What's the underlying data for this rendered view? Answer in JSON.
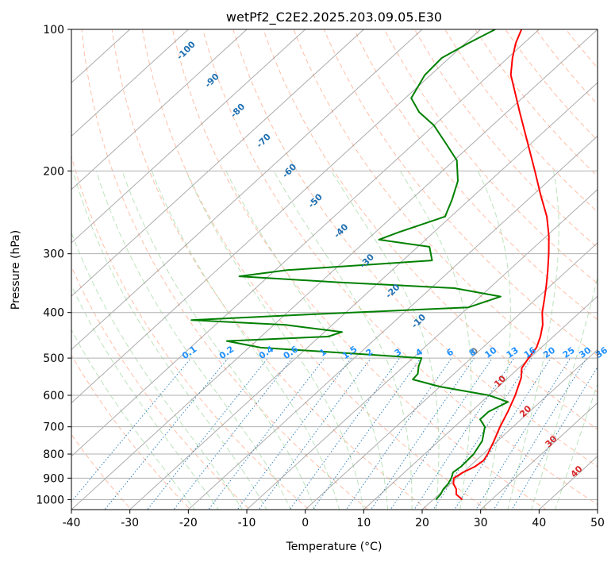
{
  "chart_data": {
    "type": "line",
    "title": "wetPf2_C2E2.2025.203.09.05.E30",
    "xlabel": "Temperature (°C)",
    "ylabel": "Pressure (hPa)",
    "xlim": [
      -40,
      50
    ],
    "ylim": [
      1050,
      100
    ],
    "y_scale": "log",
    "grid": true,
    "x_ticks": [
      -40,
      -30,
      -20,
      -10,
      0,
      10,
      20,
      30,
      40,
      50
    ],
    "y_ticks": [
      1000,
      900,
      800,
      700,
      600,
      500,
      400,
      300,
      200,
      100
    ],
    "dry_adiabat_labels": [
      "-100",
      "-90",
      "-80",
      "-70",
      "-60",
      "-50",
      "-40",
      "-30",
      "-20",
      "-10",
      "0",
      "10",
      "20",
      "30",
      "40"
    ],
    "mixing_ratio_labels": [
      "0.1",
      "0.2",
      "0.4",
      "0.6",
      "1",
      "1.5",
      "2",
      "3",
      "4",
      "6",
      "8",
      "10",
      "13",
      "16",
      "20",
      "25",
      "30",
      "36"
    ],
    "colors": {
      "temperature": "#ff0000",
      "dewpoint": "#008000",
      "dry_adiabat": "#ff7f50",
      "moist_adiabat": "#90d090",
      "mixing_ratio": "#1f77b4",
      "isotherm": "#808080",
      "cold_label": "#1f6fb0",
      "warm_label": "#d62728",
      "mixing_label": "#1e90ff",
      "zero_label": "#808080"
    },
    "series": [
      {
        "name": "",
        "role": "temperature",
        "points": [
          {
            "p": 1000,
            "t": 25.0
          },
          {
            "p": 975,
            "t": 23.0
          },
          {
            "p": 950,
            "t": 22.0
          },
          {
            "p": 925,
            "t": 20.5
          },
          {
            "p": 900,
            "t": 19.5
          },
          {
            "p": 875,
            "t": 20.0
          },
          {
            "p": 850,
            "t": 21.0
          },
          {
            "p": 825,
            "t": 21.3
          },
          {
            "p": 800,
            "t": 20.8
          },
          {
            "p": 750,
            "t": 19.4
          },
          {
            "p": 700,
            "t": 17.8
          },
          {
            "p": 650,
            "t": 16.3
          },
          {
            "p": 600,
            "t": 14.5
          },
          {
            "p": 550,
            "t": 12.2
          },
          {
            "p": 525,
            "t": 10.5
          },
          {
            "p": 500,
            "t": 9.8
          },
          {
            "p": 475,
            "t": 9.2
          },
          {
            "p": 450,
            "t": 7.8
          },
          {
            "p": 425,
            "t": 6.0
          },
          {
            "p": 400,
            "t": 3.6
          },
          {
            "p": 375,
            "t": 1.5
          },
          {
            "p": 350,
            "t": -0.8
          },
          {
            "p": 325,
            "t": -3.4
          },
          {
            "p": 300,
            "t": -6.3
          },
          {
            "p": 275,
            "t": -9.6
          },
          {
            "p": 250,
            "t": -13.6
          },
          {
            "p": 225,
            "t": -18.7
          },
          {
            "p": 200,
            "t": -24.2
          },
          {
            "p": 175,
            "t": -30.5
          },
          {
            "p": 150,
            "t": -37.8
          },
          {
            "p": 135,
            "t": -42.7
          },
          {
            "p": 125,
            "t": -46.3
          },
          {
            "p": 115,
            "t": -49.2
          },
          {
            "p": 107,
            "t": -51.4
          },
          {
            "p": 100,
            "t": -53.0
          }
        ]
      },
      {
        "name": "",
        "role": "dewpoint",
        "points": [
          {
            "p": 1000,
            "t": 20.5
          },
          {
            "p": 975,
            "t": 20.3
          },
          {
            "p": 950,
            "t": 19.8
          },
          {
            "p": 925,
            "t": 19.6
          },
          {
            "p": 900,
            "t": 19.1
          },
          {
            "p": 875,
            "t": 18.3
          },
          {
            "p": 850,
            "t": 18.6
          },
          {
            "p": 800,
            "t": 18.4
          },
          {
            "p": 750,
            "t": 17.4
          },
          {
            "p": 700,
            "t": 15.2
          },
          {
            "p": 675,
            "t": 13.0
          },
          {
            "p": 650,
            "t": 13.0
          },
          {
            "p": 620,
            "t": 14.5
          },
          {
            "p": 600,
            "t": 10.0
          },
          {
            "p": 575,
            "t": 0.0
          },
          {
            "p": 555,
            "t": -6.0
          },
          {
            "p": 540,
            "t": -6.2
          },
          {
            "p": 520,
            "t": -7.5
          },
          {
            "p": 500,
            "t": -8.5
          },
          {
            "p": 490,
            "t": -20.0
          },
          {
            "p": 475,
            "t": -38.0
          },
          {
            "p": 460,
            "t": -45.0
          },
          {
            "p": 450,
            "t": -28.5
          },
          {
            "p": 440,
            "t": -27.0
          },
          {
            "p": 425,
            "t": -38.0
          },
          {
            "p": 415,
            "t": -55.0
          },
          {
            "p": 405,
            "t": -38.0
          },
          {
            "p": 390,
            "t": -10.0
          },
          {
            "p": 370,
            "t": -6.5
          },
          {
            "p": 355,
            "t": -16.0
          },
          {
            "p": 345,
            "t": -37.0
          },
          {
            "p": 335,
            "t": -55.0
          },
          {
            "p": 325,
            "t": -48.0
          },
          {
            "p": 310,
            "t": -25.0
          },
          {
            "p": 290,
            "t": -28.0
          },
          {
            "p": 280,
            "t": -38.0
          },
          {
            "p": 270,
            "t": -36.0
          },
          {
            "p": 250,
            "t": -31.0
          },
          {
            "p": 230,
            "t": -33.0
          },
          {
            "p": 210,
            "t": -35.5
          },
          {
            "p": 190,
            "t": -39.5
          },
          {
            "p": 175,
            "t": -44.5
          },
          {
            "p": 160,
            "t": -50.0
          },
          {
            "p": 150,
            "t": -55.0
          },
          {
            "p": 140,
            "t": -59.0
          },
          {
            "p": 125,
            "t": -61.0
          },
          {
            "p": 115,
            "t": -61.3
          },
          {
            "p": 107,
            "t": -59.5
          },
          {
            "p": 100,
            "t": -57.5
          }
        ]
      }
    ]
  }
}
